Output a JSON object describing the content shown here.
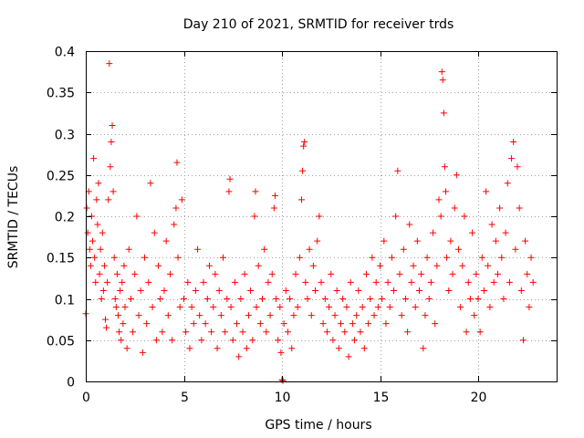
{
  "chart_data": {
    "type": "scatter",
    "title": "Day 210 of 2021, SRMTID for receiver trds",
    "xlabel": "GPS time / hours",
    "ylabel": "SRMTID / TECUs",
    "xlim": [
      0,
      24
    ],
    "ylim": [
      0,
      0.4
    ],
    "x_ticks": [
      0,
      5,
      10,
      15,
      20
    ],
    "x_tick_labels": [
      "0",
      "5",
      "10",
      "15",
      "20"
    ],
    "y_ticks": [
      0,
      0.05,
      0.1,
      0.15,
      0.2,
      0.25,
      0.3,
      0.35,
      0.4
    ],
    "y_tick_labels": [
      "0",
      "0.05",
      "0.1",
      "0.15",
      "0.2",
      "0.25",
      "0.3",
      "0.35",
      "0.4"
    ],
    "grid": true,
    "marker": "plus",
    "color": "#ff0000",
    "series": [
      {
        "name": "SRMTID",
        "points": [
          [
            0.0,
            0.082
          ],
          [
            0.05,
            0.21
          ],
          [
            0.1,
            0.18
          ],
          [
            0.15,
            0.23
          ],
          [
            0.2,
            0.16
          ],
          [
            0.25,
            0.14
          ],
          [
            0.3,
            0.2
          ],
          [
            0.35,
            0.17
          ],
          [
            0.4,
            0.27
          ],
          [
            0.45,
            0.15
          ],
          [
            0.5,
            0.12
          ],
          [
            0.55,
            0.22
          ],
          [
            0.6,
            0.19
          ],
          [
            0.65,
            0.24
          ],
          [
            0.7,
            0.13
          ],
          [
            0.75,
            0.16
          ],
          [
            0.8,
            0.1
          ],
          [
            0.85,
            0.18
          ],
          [
            0.9,
            0.11
          ],
          [
            0.95,
            0.14
          ],
          [
            1.0,
            0.075
          ],
          [
            1.05,
            0.065
          ],
          [
            1.1,
            0.12
          ],
          [
            1.15,
            0.22
          ],
          [
            1.2,
            0.385
          ],
          [
            1.25,
            0.26
          ],
          [
            1.3,
            0.29
          ],
          [
            1.35,
            0.31
          ],
          [
            1.4,
            0.23
          ],
          [
            1.45,
            0.15
          ],
          [
            1.5,
            0.1
          ],
          [
            1.55,
            0.09
          ],
          [
            1.6,
            0.13
          ],
          [
            1.65,
            0.08
          ],
          [
            1.7,
            0.06
          ],
          [
            1.75,
            0.11
          ],
          [
            1.8,
            0.05
          ],
          [
            1.85,
            0.12
          ],
          [
            1.9,
            0.07
          ],
          [
            1.95,
            0.14
          ],
          [
            2.0,
            0.09
          ],
          [
            2.1,
            0.04
          ],
          [
            2.2,
            0.16
          ],
          [
            2.3,
            0.1
          ],
          [
            2.4,
            0.06
          ],
          [
            2.5,
            0.13
          ],
          [
            2.6,
            0.2
          ],
          [
            2.7,
            0.08
          ],
          [
            2.8,
            0.11
          ],
          [
            2.9,
            0.035
          ],
          [
            3.0,
            0.15
          ],
          [
            3.1,
            0.07
          ],
          [
            3.2,
            0.12
          ],
          [
            3.3,
            0.24
          ],
          [
            3.4,
            0.09
          ],
          [
            3.5,
            0.18
          ],
          [
            3.6,
            0.05
          ],
          [
            3.7,
            0.14
          ],
          [
            3.8,
            0.1
          ],
          [
            3.9,
            0.06
          ],
          [
            4.0,
            0.11
          ],
          [
            4.1,
            0.17
          ],
          [
            4.2,
            0.08
          ],
          [
            4.3,
            0.13
          ],
          [
            4.4,
            0.05
          ],
          [
            4.5,
            0.19
          ],
          [
            4.6,
            0.21
          ],
          [
            4.65,
            0.265
          ],
          [
            4.7,
            0.15
          ],
          [
            4.8,
            0.09
          ],
          [
            4.9,
            0.22
          ],
          [
            5.0,
            0.1
          ],
          [
            5.1,
            0.06
          ],
          [
            5.2,
            0.12
          ],
          [
            5.3,
            0.04
          ],
          [
            5.4,
            0.09
          ],
          [
            5.5,
            0.07
          ],
          [
            5.6,
            0.11
          ],
          [
            5.7,
            0.16
          ],
          [
            5.8,
            0.08
          ],
          [
            5.9,
            0.05
          ],
          [
            6.0,
            0.12
          ],
          [
            6.1,
            0.07
          ],
          [
            6.2,
            0.1
          ],
          [
            6.3,
            0.14
          ],
          [
            6.4,
            0.06
          ],
          [
            6.5,
            0.09
          ],
          [
            6.6,
            0.13
          ],
          [
            6.7,
            0.04
          ],
          [
            6.8,
            0.11
          ],
          [
            6.9,
            0.08
          ],
          [
            7.0,
            0.15
          ],
          [
            7.1,
            0.06
          ],
          [
            7.2,
            0.1
          ],
          [
            7.3,
            0.23
          ],
          [
            7.35,
            0.245
          ],
          [
            7.4,
            0.09
          ],
          [
            7.5,
            0.05
          ],
          [
            7.6,
            0.12
          ],
          [
            7.7,
            0.07
          ],
          [
            7.8,
            0.03
          ],
          [
            7.9,
            0.1
          ],
          [
            8.0,
            0.06
          ],
          [
            8.1,
            0.13
          ],
          [
            8.2,
            0.04
          ],
          [
            8.3,
            0.08
          ],
          [
            8.4,
            0.11
          ],
          [
            8.5,
            0.05
          ],
          [
            8.6,
            0.2
          ],
          [
            8.65,
            0.23
          ],
          [
            8.7,
            0.09
          ],
          [
            8.8,
            0.14
          ],
          [
            8.9,
            0.07
          ],
          [
            9.0,
            0.1
          ],
          [
            9.1,
            0.16
          ],
          [
            9.2,
            0.06
          ],
          [
            9.3,
            0.12
          ],
          [
            9.4,
            0.08
          ],
          [
            9.5,
            0.13
          ],
          [
            9.6,
            0.21
          ],
          [
            9.65,
            0.225
          ],
          [
            9.7,
            0.1
          ],
          [
            9.8,
            0.05
          ],
          [
            9.9,
            0.09
          ],
          [
            9.95,
            0.035
          ],
          [
            10.0,
            0.002
          ],
          [
            10.05,
            0.001
          ],
          [
            10.1,
            0.07
          ],
          [
            10.2,
            0.11
          ],
          [
            10.3,
            0.06
          ],
          [
            10.4,
            0.1
          ],
          [
            10.5,
            0.04
          ],
          [
            10.6,
            0.08
          ],
          [
            10.7,
            0.13
          ],
          [
            10.8,
            0.09
          ],
          [
            10.9,
            0.15
          ],
          [
            11.0,
            0.22
          ],
          [
            11.05,
            0.255
          ],
          [
            11.1,
            0.285
          ],
          [
            11.15,
            0.29
          ],
          [
            11.2,
            0.12
          ],
          [
            11.3,
            0.1
          ],
          [
            11.4,
            0.16
          ],
          [
            11.5,
            0.08
          ],
          [
            11.6,
            0.14
          ],
          [
            11.7,
            0.11
          ],
          [
            11.8,
            0.17
          ],
          [
            11.9,
            0.2
          ],
          [
            12.0,
            0.12
          ],
          [
            12.1,
            0.07
          ],
          [
            12.2,
            0.1
          ],
          [
            12.3,
            0.06
          ],
          [
            12.4,
            0.09
          ],
          [
            12.5,
            0.13
          ],
          [
            12.6,
            0.05
          ],
          [
            12.7,
            0.08
          ],
          [
            12.8,
            0.11
          ],
          [
            12.9,
            0.04
          ],
          [
            13.0,
            0.07
          ],
          [
            13.1,
            0.1
          ],
          [
            13.2,
            0.06
          ],
          [
            13.3,
            0.09
          ],
          [
            13.4,
            0.03
          ],
          [
            13.5,
            0.12
          ],
          [
            13.6,
            0.07
          ],
          [
            13.7,
            0.05
          ],
          [
            13.8,
            0.08
          ],
          [
            13.9,
            0.11
          ],
          [
            14.0,
            0.06
          ],
          [
            14.1,
            0.09
          ],
          [
            14.2,
            0.04
          ],
          [
            14.3,
            0.13
          ],
          [
            14.4,
            0.07
          ],
          [
            14.5,
            0.1
          ],
          [
            14.6,
            0.15
          ],
          [
            14.7,
            0.08
          ],
          [
            14.8,
            0.12
          ],
          [
            14.9,
            0.09
          ],
          [
            15.0,
            0.14
          ],
          [
            15.1,
            0.1
          ],
          [
            15.2,
            0.17
          ],
          [
            15.3,
            0.07
          ],
          [
            15.4,
            0.12
          ],
          [
            15.5,
            0.09
          ],
          [
            15.6,
            0.15
          ],
          [
            15.7,
            0.11
          ],
          [
            15.8,
            0.2
          ],
          [
            15.9,
            0.255
          ],
          [
            16.0,
            0.13
          ],
          [
            16.1,
            0.08
          ],
          [
            16.2,
            0.16
          ],
          [
            16.3,
            0.1
          ],
          [
            16.4,
            0.06
          ],
          [
            16.5,
            0.19
          ],
          [
            16.6,
            0.12
          ],
          [
            16.7,
            0.14
          ],
          [
            16.8,
            0.09
          ],
          [
            16.9,
            0.17
          ],
          [
            17.0,
            0.11
          ],
          [
            17.1,
            0.13
          ],
          [
            17.2,
            0.04
          ],
          [
            17.3,
            0.08
          ],
          [
            17.4,
            0.15
          ],
          [
            17.5,
            0.1
          ],
          [
            17.6,
            0.12
          ],
          [
            17.7,
            0.18
          ],
          [
            17.8,
            0.07
          ],
          [
            17.9,
            0.14
          ],
          [
            18.0,
            0.22
          ],
          [
            18.1,
            0.2
          ],
          [
            18.15,
            0.375
          ],
          [
            18.2,
            0.365
          ],
          [
            18.25,
            0.325
          ],
          [
            18.3,
            0.26
          ],
          [
            18.35,
            0.23
          ],
          [
            18.4,
            0.15
          ],
          [
            18.5,
            0.11
          ],
          [
            18.6,
            0.17
          ],
          [
            18.7,
            0.13
          ],
          [
            18.8,
            0.21
          ],
          [
            18.9,
            0.25
          ],
          [
            19.0,
            0.16
          ],
          [
            19.1,
            0.09
          ],
          [
            19.2,
            0.14
          ],
          [
            19.3,
            0.2
          ],
          [
            19.4,
            0.06
          ],
          [
            19.5,
            0.12
          ],
          [
            19.6,
            0.1
          ],
          [
            19.7,
            0.18
          ],
          [
            19.8,
            0.08
          ],
          [
            19.9,
            0.13
          ],
          [
            20.0,
            0.1
          ],
          [
            20.1,
            0.06
          ],
          [
            20.2,
            0.15
          ],
          [
            20.3,
            0.11
          ],
          [
            20.4,
            0.23
          ],
          [
            20.5,
            0.14
          ],
          [
            20.6,
            0.09
          ],
          [
            20.7,
            0.19
          ],
          [
            20.8,
            0.12
          ],
          [
            20.9,
            0.17
          ],
          [
            21.0,
            0.13
          ],
          [
            21.1,
            0.21
          ],
          [
            21.2,
            0.15
          ],
          [
            21.3,
            0.1
          ],
          [
            21.4,
            0.18
          ],
          [
            21.5,
            0.24
          ],
          [
            21.6,
            0.12
          ],
          [
            21.7,
            0.27
          ],
          [
            21.8,
            0.29
          ],
          [
            21.9,
            0.16
          ],
          [
            22.0,
            0.26
          ],
          [
            22.1,
            0.21
          ],
          [
            22.2,
            0.11
          ],
          [
            22.3,
            0.05
          ],
          [
            22.4,
            0.17
          ],
          [
            22.5,
            0.13
          ],
          [
            22.6,
            0.09
          ],
          [
            22.7,
            0.15
          ],
          [
            22.8,
            0.12
          ]
        ]
      }
    ]
  }
}
